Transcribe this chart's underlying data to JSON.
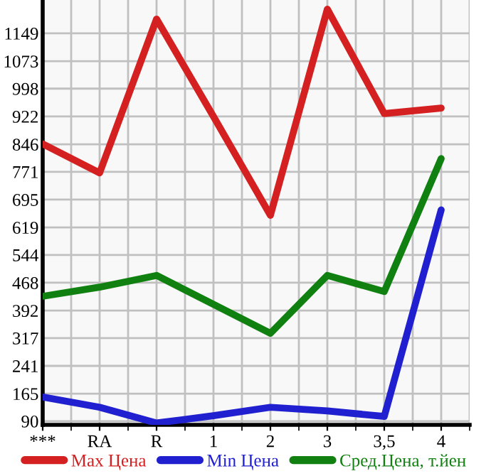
{
  "chart_data": {
    "type": "line",
    "categories": [
      "***",
      "RA",
      "R",
      "1",
      "2",
      "3",
      "3,5",
      "4"
    ],
    "series": [
      {
        "name": "Max Цена",
        "color": "#d42020",
        "values": [
          847,
          768,
          1188,
          922,
          652,
          1215,
          930,
          945
        ]
      },
      {
        "name": "Min Цена",
        "color": "#2020d0",
        "values": [
          156,
          128,
          85,
          105,
          128,
          118,
          103,
          667
        ]
      },
      {
        "name": "Сред.Цена, т.йен",
        "color": "#108010",
        "values": [
          431,
          456,
          488,
          409,
          330,
          488,
          444,
          807
        ]
      }
    ],
    "ylim": [
      80,
      1240
    ],
    "yticks": [
      90,
      165,
      241,
      317,
      392,
      468,
      544,
      619,
      695,
      771,
      846,
      922,
      998,
      1073,
      1149
    ],
    "grid": true,
    "legend": "bottom",
    "marker": "none",
    "line_style": "solid"
  }
}
